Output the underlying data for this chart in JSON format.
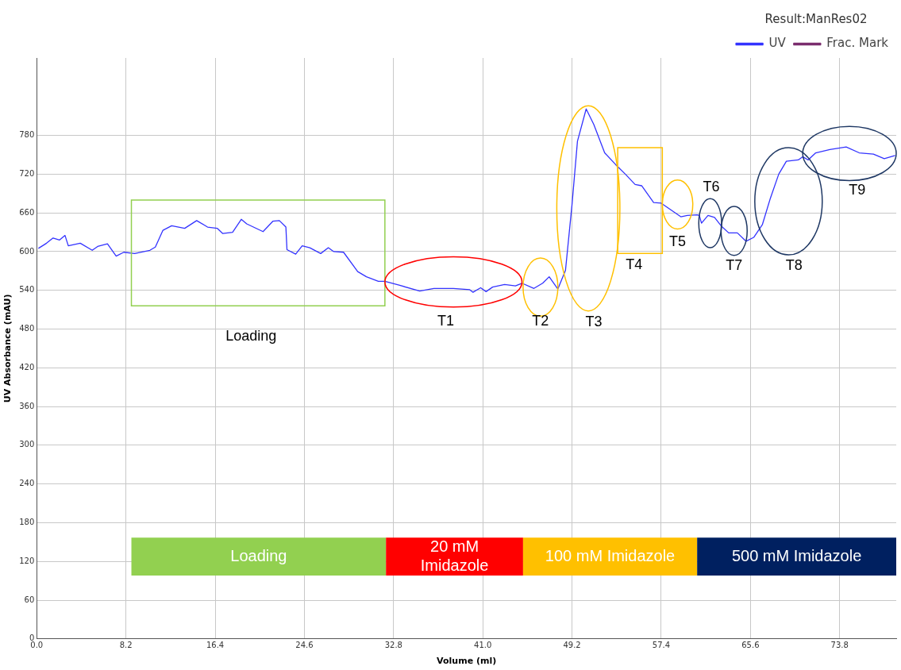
{
  "chart_data": {
    "type": "line",
    "xlabel": "Volume (ml)",
    "ylabel": "UV Absorbance (mAU)",
    "legend_title": "Result:ManRes02",
    "legend": "top right",
    "grid": true,
    "marker": "none",
    "line_style": "solid",
    "xlim": [
      0,
      79
    ],
    "ylim": [
      0,
      900
    ],
    "xticks": [
      {
        "value": 0,
        "label": "0.0"
      },
      8.2,
      16.4,
      24.6,
      32.8,
      {
        "value": 41,
        "label": "41.0"
      },
      49.2,
      57.4,
      65.6,
      73.8
    ],
    "yticks": [
      0,
      60,
      120,
      180,
      240,
      300,
      360,
      420,
      480,
      540,
      600,
      660,
      720,
      780
    ],
    "series": [
      {
        "name": "UV",
        "color": "#3333ff",
        "x": [
          0.15,
          0.9,
          1.5,
          2.1,
          2.6,
          2.9,
          4.0,
          5.1,
          5.6,
          6.5,
          7.3,
          8.0,
          9.0,
          10.4,
          10.9,
          11.6,
          12.4,
          13.6,
          14.7,
          15.7,
          16.6,
          17.1,
          18.0,
          18.8,
          19.3,
          20.8,
          21.7,
          22.3,
          22.9,
          23.0,
          23.8,
          24.4,
          25.1,
          26.1,
          26.8,
          27.3,
          28.2,
          29.5,
          30.3,
          31.4,
          32.0,
          33.3,
          35.2,
          36.5,
          38.3,
          39.8,
          40.1,
          40.8,
          41.3,
          41.9,
          43.0,
          44.0,
          44.6,
          45.7,
          46.5,
          47.1,
          47.9,
          48.6,
          49.2,
          49.7,
          50.5,
          51.2,
          52.2,
          53.2,
          54.1,
          55.0,
          55.6,
          56.7,
          57.4,
          59.2,
          59.8,
          60.7,
          60.9,
          61.1,
          61.7,
          62.3,
          62.9,
          63.6,
          64.4,
          65.2,
          65.9,
          66.7,
          67.4,
          68.2,
          68.9,
          70.0,
          70.4,
          70.9,
          71.6,
          72.9,
          74.4,
          75.6,
          76.9,
          77.9,
          78.9
        ],
        "values": [
          605,
          613,
          621,
          618,
          625,
          609,
          613,
          602,
          608,
          612,
          593,
          599,
          597,
          602,
          607,
          633,
          640,
          636,
          648,
          638,
          636,
          628,
          630,
          650,
          643,
          631,
          647,
          648,
          638,
          603,
          596,
          609,
          606,
          597,
          606,
          600,
          599,
          569,
          561,
          554,
          554,
          548,
          539,
          543,
          543,
          541,
          537,
          544,
          538,
          545,
          549,
          547,
          551,
          543,
          551,
          561,
          542,
          571,
          673,
          771,
          821,
          797,
          753,
          735,
          720,
          704,
          702,
          676,
          675,
          654,
          656,
          657,
          656,
          644,
          656,
          653,
          640,
          629,
          629,
          616,
          622,
          642,
          681,
          720,
          740,
          742,
          747,
          742,
          753,
          758,
          762,
          753,
          751,
          744,
          749
        ]
      },
      {
        "name": "Frac. Mark",
        "color": "#7b2d6e"
      }
    ],
    "bands": [
      {
        "axis": "x",
        "from": 8.7,
        "to": 32.1,
        "label": "Loading",
        "color": "#92d050"
      },
      {
        "axis": "x",
        "from": 32.1,
        "to": 44.7,
        "label": "20 mM\nImidazole",
        "color": "#ff0000"
      },
      {
        "axis": "x",
        "from": 44.7,
        "to": 60.7,
        "label": "100 mM Imidazole",
        "color": "#ffc000"
      },
      {
        "axis": "x",
        "from": 60.7,
        "to": 79,
        "label": "500 mM Imidazole",
        "color": "#002060"
      }
    ],
    "annotations": [
      "Loading",
      "T1",
      "T2",
      "T3",
      "T4",
      "T5",
      "T6",
      "T7",
      "T8",
      "T9"
    ]
  }
}
